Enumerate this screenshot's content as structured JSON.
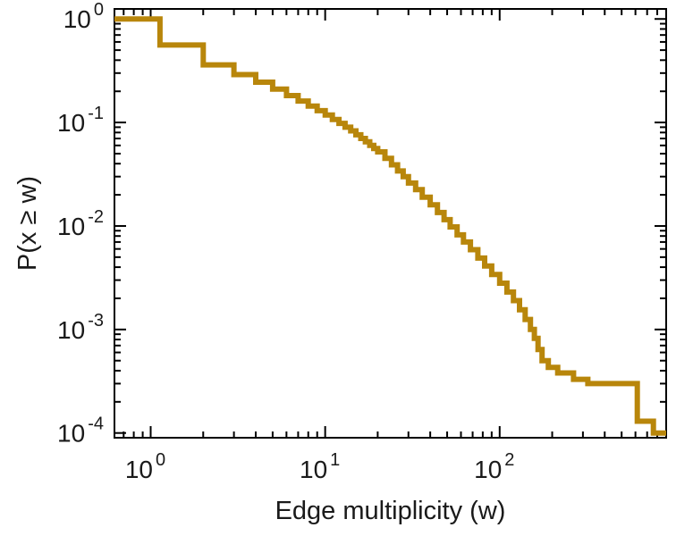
{
  "axes": {
    "xlabel": "Edge multiplicity (w)",
    "ylabel": "P(x ≥ w)"
  },
  "chart_data": {
    "type": "line",
    "subtype": "step-post-ccdf",
    "title": "",
    "xlabel": "Edge multiplicity (w)",
    "ylabel": "P(x ≥ w)",
    "x_scale": "log",
    "y_scale": "log",
    "xlim": [
      0.62,
      900
    ],
    "ylim": [
      9e-05,
      1.25
    ],
    "x_tick_exponents": [
      0,
      1,
      2
    ],
    "y_tick_exponents": [
      0,
      -1,
      -2,
      -3,
      -4
    ],
    "x_tick_labels": [
      "10^0",
      "10^1",
      "10^2"
    ],
    "y_tick_labels": [
      "10^0",
      "10^-1",
      "10^-2",
      "10^-3",
      "10^-4"
    ],
    "grid": false,
    "legend": "none",
    "line_color": "#b8860b",
    "line_width": 6,
    "frame_color": "#000000",
    "x": [
      1,
      1.13,
      2,
      3,
      4,
      5,
      6,
      7,
      8,
      9,
      10,
      11,
      12,
      13,
      14,
      15,
      16,
      17,
      18,
      19,
      20,
      22,
      24,
      26,
      28,
      30,
      33,
      36,
      40,
      44,
      48,
      52,
      57,
      62,
      68,
      75,
      82,
      90,
      100,
      110,
      120,
      130,
      140,
      150,
      158,
      166,
      175,
      190,
      215,
      265,
      320,
      615,
      760
    ],
    "y": [
      1.0,
      0.56,
      0.36,
      0.29,
      0.245,
      0.21,
      0.182,
      0.161,
      0.144,
      0.13,
      0.118,
      0.107,
      0.098,
      0.09,
      0.083,
      0.076,
      0.07,
      0.065,
      0.06,
      0.056,
      0.052,
      0.045,
      0.039,
      0.034,
      0.03,
      0.026,
      0.0225,
      0.019,
      0.016,
      0.0135,
      0.0115,
      0.0098,
      0.0082,
      0.007,
      0.0059,
      0.0049,
      0.0041,
      0.0034,
      0.0028,
      0.0023,
      0.0019,
      0.00155,
      0.00125,
      0.001,
      0.00082,
      0.00064,
      0.0005,
      0.00043,
      0.00038,
      0.00033,
      0.0003,
      0.00013,
      0.0001
    ]
  }
}
